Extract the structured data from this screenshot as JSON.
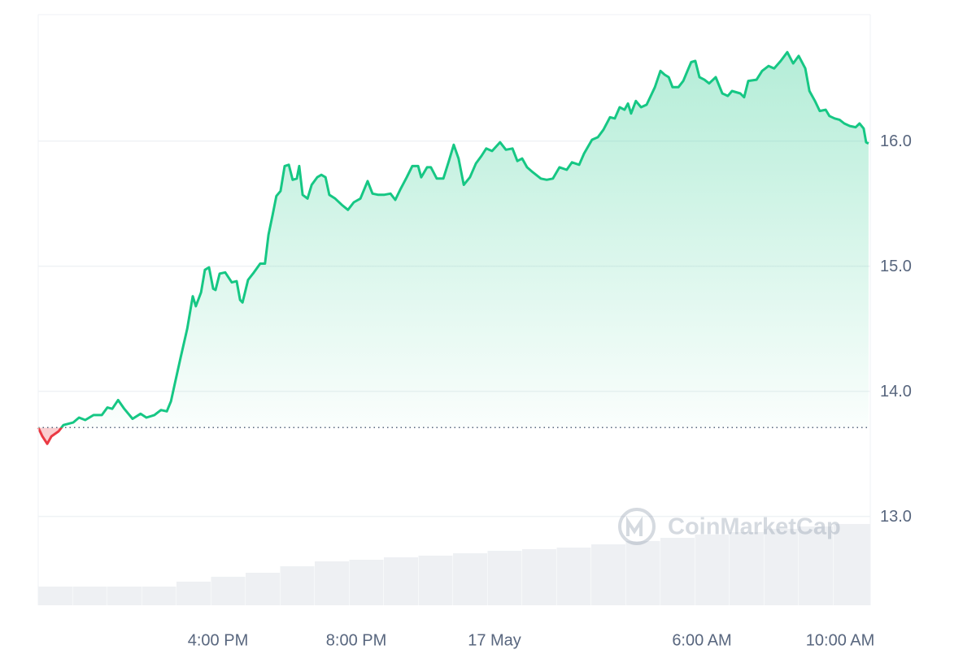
{
  "chart_data": {
    "type": "line",
    "watermark": "CoinMarketCap",
    "baseline": 13.71,
    "up_color": "#16c784",
    "down_color": "#ea3943",
    "grid": true,
    "xlim": [
      -13.2,
      10.87
    ],
    "xticks": [
      {
        "value": -8,
        "label": "4:00 PM"
      },
      {
        "value": -4,
        "label": "8:00 PM"
      },
      {
        "value": 0,
        "label": "17 May"
      },
      {
        "value": 6,
        "label": "6:00 AM"
      },
      {
        "value": 10,
        "label": "10:00 AM"
      }
    ],
    "ylim": [
      12.29,
      17.01
    ],
    "yticks": [
      {
        "value": 13,
        "label": "13.0"
      },
      {
        "value": 14,
        "label": "14.0"
      },
      {
        "value": 15,
        "label": "15.0"
      },
      {
        "value": 16,
        "label": "16.0"
      }
    ],
    "y2lim": [
      0,
      500
    ],
    "series": [
      {
        "type": "line",
        "x": [
          -13.2,
          -13.08,
          -12.94,
          -12.82,
          -12.61,
          -12.47,
          -12.19,
          -12.02,
          -11.84,
          -11.6,
          -11.36,
          -11.2,
          -11.06,
          -10.89,
          -10.71,
          -10.47,
          -10.24,
          -10.07,
          -9.84,
          -9.65,
          -9.48,
          -9.36,
          -9.25,
          -9.08,
          -8.89,
          -8.73,
          -8.64,
          -8.49,
          -8.38,
          -8.26,
          -8.14,
          -8.07,
          -7.95,
          -7.79,
          -7.6,
          -7.46,
          -7.36,
          -7.29,
          -7.13,
          -6.96,
          -6.78,
          -6.64,
          -6.54,
          -6.42,
          -6.31,
          -6.19,
          -6.07,
          -5.95,
          -5.84,
          -5.72,
          -5.65,
          -5.55,
          -5.41,
          -5.29,
          -5.13,
          -5.01,
          -4.89,
          -4.78,
          -4.61,
          -4.42,
          -4.24,
          -4.07,
          -3.88,
          -3.67,
          -3.53,
          -3.36,
          -3.2,
          -3.01,
          -2.87,
          -2.73,
          -2.54,
          -2.38,
          -2.21,
          -2.12,
          -1.95,
          -1.84,
          -1.67,
          -1.48,
          -1.32,
          -1.18,
          -1.04,
          -0.89,
          -0.71,
          -0.54,
          -0.38,
          -0.24,
          -0.07,
          0.16,
          0.33,
          0.52,
          0.66,
          0.8,
          0.94,
          1.11,
          1.34,
          1.51,
          1.69,
          1.88,
          2.09,
          2.24,
          2.45,
          2.59,
          2.82,
          2.99,
          3.15,
          3.34,
          3.48,
          3.62,
          3.76,
          3.86,
          3.95,
          4.09,
          4.24,
          4.4,
          4.52,
          4.64,
          4.8,
          4.92,
          5.04,
          5.15,
          5.32,
          5.46,
          5.58,
          5.69,
          5.81,
          5.93,
          6.07,
          6.21,
          6.4,
          6.59,
          6.75,
          6.87,
          7.11,
          7.22,
          7.34,
          7.58,
          7.74,
          7.93,
          8.09,
          8.28,
          8.47,
          8.64,
          8.8,
          8.99,
          9.11,
          9.27,
          9.41,
          9.58,
          9.69,
          9.84,
          9.98,
          10.12,
          10.28,
          10.45,
          10.56,
          10.68,
          10.75,
          10.82
        ],
        "values": [
          13.71,
          13.64,
          13.58,
          13.64,
          13.68,
          13.73,
          13.75,
          13.79,
          13.77,
          13.81,
          13.81,
          13.87,
          13.86,
          13.93,
          13.86,
          13.78,
          13.82,
          13.79,
          13.81,
          13.85,
          13.84,
          13.92,
          14.06,
          14.27,
          14.5,
          14.76,
          14.68,
          14.79,
          14.97,
          14.99,
          14.82,
          14.81,
          14.94,
          14.95,
          14.87,
          14.88,
          14.73,
          14.71,
          14.89,
          14.95,
          15.02,
          15.02,
          15.25,
          15.41,
          15.56,
          15.6,
          15.8,
          15.81,
          15.69,
          15.7,
          15.8,
          15.57,
          15.54,
          15.65,
          15.71,
          15.73,
          15.71,
          15.57,
          15.54,
          15.49,
          15.45,
          15.51,
          15.54,
          15.68,
          15.58,
          15.57,
          15.57,
          15.58,
          15.53,
          15.61,
          15.71,
          15.8,
          15.8,
          15.71,
          15.79,
          15.79,
          15.7,
          15.7,
          15.84,
          15.97,
          15.86,
          15.65,
          15.71,
          15.82,
          15.88,
          15.94,
          15.92,
          15.99,
          15.93,
          15.94,
          15.84,
          15.86,
          15.79,
          15.75,
          15.7,
          15.69,
          15.7,
          15.79,
          15.77,
          15.83,
          15.81,
          15.9,
          16.01,
          16.03,
          16.09,
          16.19,
          16.18,
          16.27,
          16.25,
          16.3,
          16.22,
          16.32,
          16.27,
          16.29,
          16.36,
          16.43,
          16.56,
          16.53,
          16.51,
          16.43,
          16.43,
          16.48,
          16.56,
          16.63,
          16.64,
          16.51,
          16.49,
          16.46,
          16.51,
          16.38,
          16.36,
          16.4,
          16.38,
          16.35,
          16.48,
          16.49,
          16.56,
          16.6,
          16.58,
          16.64,
          16.71,
          16.62,
          16.68,
          16.58,
          16.4,
          16.32,
          16.24,
          16.25,
          16.2,
          16.18,
          16.17,
          16.14,
          16.12,
          16.11,
          16.14,
          16.1,
          15.99,
          15.98
        ]
      },
      {
        "type": "bar",
        "axis": "y2",
        "color": "#eef0f3",
        "x": [
          -13.2,
          -12.2,
          -11.2,
          -10.2,
          -9.2,
          -8.2,
          -7.2,
          -6.2,
          -5.2,
          -4.2,
          -3.2,
          -2.2,
          -1.2,
          -0.2,
          0.8,
          1.8,
          2.8,
          3.8,
          4.8,
          5.8,
          6.8,
          7.8,
          8.8,
          9.8
        ],
        "values": [
          15.8,
          15.8,
          15.8,
          15.8,
          20,
          24.1,
          27.5,
          33,
          37.2,
          38.5,
          40.6,
          42,
          44,
          46.1,
          47.5,
          48.8,
          51.6,
          54.4,
          57.1,
          59.9,
          61.9,
          64.7,
          66.7,
          68.8
        ]
      }
    ]
  }
}
